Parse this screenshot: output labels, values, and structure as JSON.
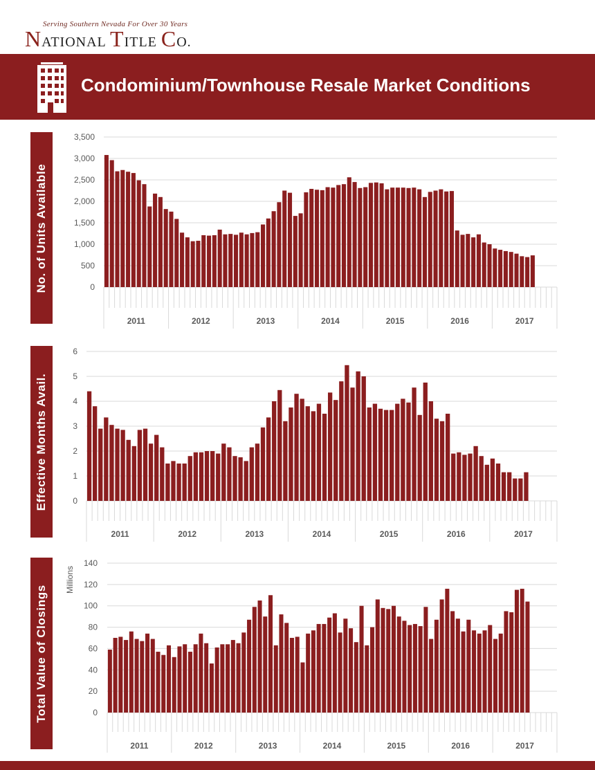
{
  "header": {
    "tagline": "Serving Southern Nevada For Over 30 Years",
    "company": {
      "n1": "N",
      "n2": "ATIONAL ",
      "t1": "T",
      "t2": "ITLE ",
      "c1": "C",
      "c2": "O."
    },
    "banner_title": "Condominium/Townhouse Resale Market Conditions",
    "building_icon": "building-icon"
  },
  "colors": {
    "bar": "#8b1e1f",
    "banner": "#8b1e1f",
    "grid": "#d9d9d9",
    "axis_text": "#595959"
  },
  "chart_data": [
    {
      "type": "bar",
      "side_label": "No. of Units Available",
      "ylabel": "",
      "ylim": [
        0,
        3500
      ],
      "yticks": [
        0,
        500,
        1000,
        1500,
        2000,
        2500,
        3000,
        3500
      ],
      "ytick_labels": [
        "0",
        "500",
        "1,000",
        "1,500",
        "2,000",
        "2,500",
        "3,000",
        "3,500"
      ],
      "year_labels": [
        "2011",
        "2012",
        "2013",
        "2014",
        "2015",
        "2016",
        "2017"
      ],
      "slots": 84,
      "values": [
        3080,
        2960,
        2700,
        2730,
        2690,
        2660,
        2490,
        2400,
        1880,
        2180,
        2100,
        1820,
        1760,
        1590,
        1270,
        1160,
        1070,
        1080,
        1210,
        1200,
        1210,
        1340,
        1230,
        1240,
        1220,
        1270,
        1230,
        1260,
        1280,
        1460,
        1600,
        1770,
        1980,
        2250,
        2200,
        1660,
        1720,
        2210,
        2290,
        2270,
        2260,
        2330,
        2320,
        2380,
        2400,
        2560,
        2450,
        2310,
        2330,
        2430,
        2440,
        2420,
        2280,
        2320,
        2320,
        2320,
        2310,
        2320,
        2280,
        2100,
        2220,
        2250,
        2280,
        2230,
        2240,
        1320,
        1220,
        1240,
        1160,
        1230,
        1040,
        1000,
        900,
        870,
        840,
        820,
        780,
        720,
        700,
        740
      ]
    },
    {
      "type": "bar",
      "side_label": "Effective Months Avail.",
      "ylabel": "",
      "ylim": [
        0,
        6
      ],
      "yticks": [
        0,
        1,
        2,
        3,
        4,
        5,
        6
      ],
      "ytick_labels": [
        "0",
        "1",
        "2",
        "3",
        "4",
        "5",
        "6"
      ],
      "year_labels": [
        "2011",
        "2012",
        "2013",
        "2014",
        "2015",
        "2016",
        "2017"
      ],
      "slots": 84,
      "values": [
        4.4,
        3.8,
        2.9,
        3.35,
        3.05,
        2.9,
        2.85,
        2.45,
        2.2,
        2.85,
        2.9,
        2.3,
        2.65,
        2.15,
        1.5,
        1.6,
        1.5,
        1.5,
        1.8,
        1.95,
        1.95,
        2.0,
        2.0,
        1.9,
        2.3,
        2.15,
        1.8,
        1.75,
        1.6,
        2.15,
        2.3,
        2.95,
        3.35,
        4.0,
        4.45,
        3.2,
        3.75,
        4.3,
        4.1,
        3.8,
        3.6,
        3.9,
        3.5,
        4.35,
        4.05,
        4.8,
        5.45,
        4.55,
        5.2,
        5.0,
        3.75,
        3.9,
        3.7,
        3.65,
        3.65,
        3.9,
        4.1,
        3.95,
        4.55,
        3.45,
        4.75,
        4.0,
        3.3,
        3.2,
        3.5,
        1.9,
        1.95,
        1.85,
        1.9,
        2.2,
        1.8,
        1.45,
        1.7,
        1.5,
        1.15,
        1.15,
        0.9,
        0.9,
        1.15
      ]
    },
    {
      "type": "bar",
      "side_label": "Total Value of Closings",
      "ylabel": "Millions",
      "ylim": [
        0,
        140
      ],
      "yticks": [
        0,
        20,
        40,
        60,
        80,
        100,
        120,
        140
      ],
      "ytick_labels": [
        "0",
        "20",
        "40",
        "60",
        "80",
        "100",
        "120",
        "140"
      ],
      "year_labels": [
        "2011",
        "2012",
        "2013",
        "2014",
        "2015",
        "2016",
        "2017"
      ],
      "slots": 84,
      "values": [
        59,
        70,
        71,
        68,
        76,
        69,
        67,
        74,
        69,
        57,
        54,
        63,
        52,
        62,
        64,
        57,
        64,
        74,
        65,
        46,
        61,
        64,
        64,
        68,
        65,
        75,
        87,
        99,
        105,
        90,
        110,
        63,
        92,
        84,
        70,
        71,
        47,
        74,
        77,
        83,
        83,
        89,
        93,
        75,
        88,
        79,
        66,
        100,
        63,
        80,
        106,
        98,
        97,
        100,
        90,
        86,
        82,
        83,
        81,
        99,
        69,
        87,
        106,
        116,
        95,
        88,
        76,
        87,
        77,
        74,
        77,
        82,
        69,
        74,
        95,
        94,
        115,
        116,
        104
      ]
    }
  ]
}
